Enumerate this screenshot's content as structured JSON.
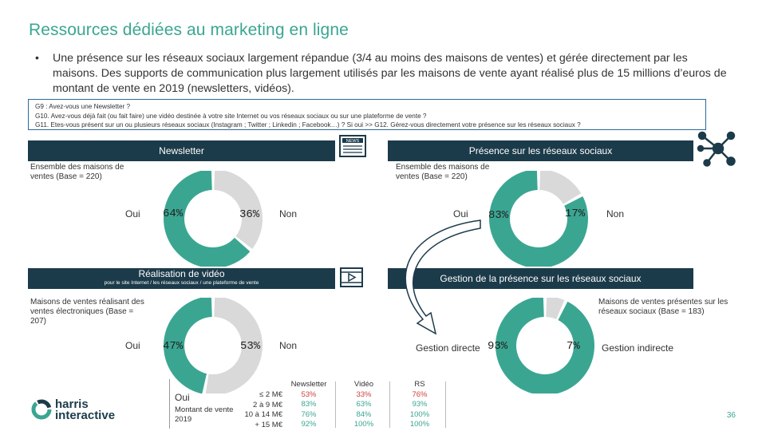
{
  "title": "Ressources dédiées au marketing en ligne",
  "bullet": "Une présence sur les réseaux sociaux largement répandue (3/4 au moins des maisons de ventes) et gérée directement  par les maisons.  Des supports de communication plus largement utilisés par les maisons de vente ayant réalisé plus de 15 millions d’euros de montant de vente en 2019 (newsletters, vidéos).",
  "questions": [
    "G9 : Avez-vous une Newsletter ?",
    "G10. Avez-vous déjà fait (ou fait faire) une vidéo destinée à votre site Internet ou vos réseaux sociaux ou sur une plateforme de vente ?",
    "G11. Etes-vous présent sur un ou plusieurs réseaux sociaux (Instagram ; Twitter ; Linkedin ; Facebook…) ? Si oui >> G12. Gérez-vous directement votre présence sur les réseaux sociaux ?"
  ],
  "colors": {
    "accent": "#3aa692",
    "light": "#d9d9d9",
    "bar": "#1c3b4a",
    "red": "#d04040"
  },
  "newsletter": {
    "bar_label": "Newsletter",
    "base": "Ensemble des maisons de ventes (Base = 220)",
    "yes_label": "Oui",
    "no_label": "Non",
    "yes_pct_text": "64%",
    "no_pct_text": "36%",
    "yes": 64,
    "no": 36
  },
  "social": {
    "bar_label": "Présence sur les réseaux sociaux",
    "base": "Ensemble des maisons de ventes (Base = 220)",
    "yes_label": "Oui",
    "no_label": "Non",
    "yes_pct_text": "83%",
    "no_pct_text": "17%",
    "yes": 83,
    "no": 17
  },
  "video": {
    "bar_label": "Réalisation de vidéo",
    "bar_sub": "pour le site Internet / les réseaux sociaux / une plateforme de vente",
    "base": "Maisons de ventes réalisant des ventes électroniques (Base = 207)",
    "yes_label": "Oui",
    "no_label": "Non",
    "yes_pct_text": "47%",
    "no_pct_text": "53%",
    "yes": 47,
    "no": 53
  },
  "management": {
    "bar_label": "Gestion de la présence sur les réseaux sociaux",
    "base": "Maisons de ventes présentes sur les réseaux sociaux (Base = 183)",
    "direct_label": "Gestion directe",
    "indirect_label": "Gestion indirecte",
    "direct_pct_text": "93%",
    "indirect_pct_text": "7%",
    "direct": 93,
    "indirect": 7
  },
  "table": {
    "oui": "Oui",
    "row_title": "Montant de vente 2019",
    "ranges": [
      "≤ 2 M€",
      "2 à 9 M€",
      "10 à 14 M€",
      "+ 15 M€"
    ],
    "columns": [
      {
        "header": "Newsletter",
        "values": [
          "53%",
          "83%",
          "76%",
          "92%"
        ]
      },
      {
        "header": "Vidéo",
        "values": [
          "33%",
          "63%",
          "84%",
          "100%"
        ]
      },
      {
        "header": "RS",
        "values": [
          "76%",
          "93%",
          "100%",
          "100%"
        ]
      }
    ]
  },
  "logo": {
    "line1": "harris",
    "line2": "interactive"
  },
  "page_number": "36",
  "icons": [
    "newspaper-icon",
    "video-play-icon",
    "network-icon",
    "curved-arrow-icon"
  ]
}
